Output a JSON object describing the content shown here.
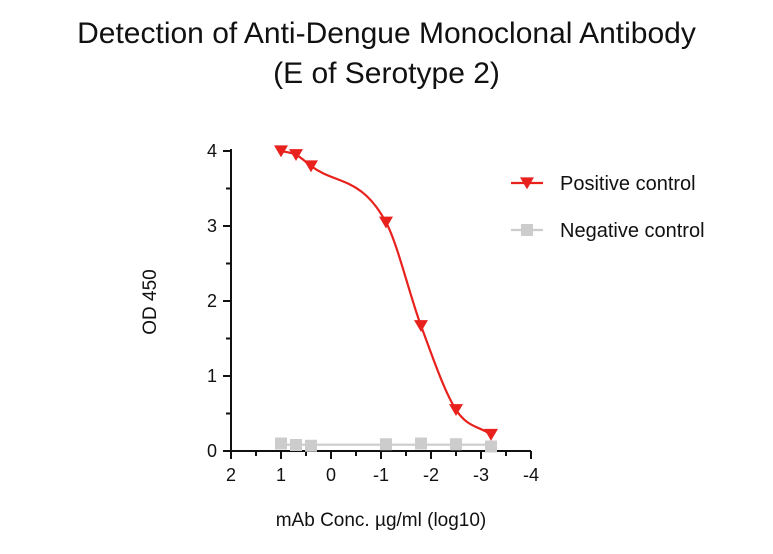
{
  "chart_data": {
    "type": "scatter",
    "title_line1": "Detection of Anti-Dengue Monoclonal Antibody",
    "title_line2": "(E of Serotype 2)",
    "xlabel": "mAb Conc. µg/ml (log10)",
    "ylabel": "OD 450",
    "xlim": [
      2,
      -4
    ],
    "ylim": [
      0,
      4
    ],
    "x_reversed": true,
    "x_ticks": [
      2,
      1,
      0,
      -1,
      -2,
      -3,
      -4
    ],
    "x_tick_labels": [
      "2",
      "1",
      "0",
      "-1",
      "-2",
      "-3",
      "-4"
    ],
    "y_ticks": [
      0,
      1,
      2,
      3,
      4
    ],
    "y_tick_labels": [
      "0",
      "1",
      "2",
      "3",
      "4"
    ],
    "legend_position": "right",
    "series": [
      {
        "name": "Positive control",
        "color": "#e8211d",
        "marker": "triangle-down",
        "fit": "sigmoidal",
        "x": [
          1.0,
          0.7,
          0.4,
          -1.1,
          -1.8,
          -2.5,
          -3.2
        ],
        "y": [
          4.0,
          3.95,
          3.8,
          3.05,
          1.67,
          0.55,
          0.22
        ]
      },
      {
        "name": "Negative control",
        "color": "#cccccc",
        "marker": "square",
        "fit": "line",
        "x": [
          1.0,
          0.7,
          0.4,
          -1.1,
          -1.8,
          -2.5,
          -3.2
        ],
        "y": [
          0.1,
          0.08,
          0.07,
          0.09,
          0.1,
          0.09,
          0.06
        ]
      }
    ]
  }
}
